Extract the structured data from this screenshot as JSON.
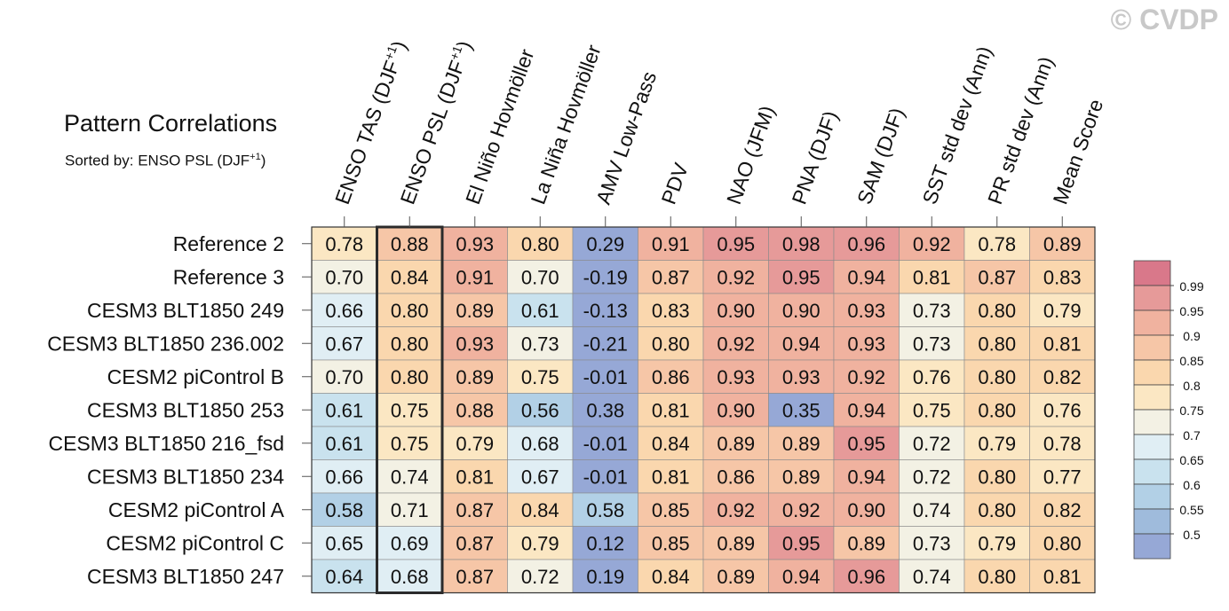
{
  "watermark": "© CVDP",
  "title": "Pattern Correlations",
  "subtitle_prefix": "Sorted by: ENSO PSL (DJF",
  "subtitle_sup": "+1",
  "subtitle_suffix": ")",
  "chart_data": {
    "type": "heatmap",
    "title": "Pattern Correlations",
    "sorted_by": "ENSO PSL (DJF+1)",
    "sup_label": "+1",
    "highlight_column": 1,
    "columns": [
      {
        "label": "ENSO TAS (DJF",
        "sup": true
      },
      {
        "label": "ENSO PSL (DJF",
        "sup": true
      },
      {
        "label": "El Niño Hovmöller",
        "sup": false
      },
      {
        "label": "La Niña Hovmöller",
        "sup": false
      },
      {
        "label": "AMV Low-Pass",
        "sup": false
      },
      {
        "label": "PDV",
        "sup": false
      },
      {
        "label": "NAO (JFM)",
        "sup": false
      },
      {
        "label": "PNA (DJF)",
        "sup": false
      },
      {
        "label": "SAM (DJF)",
        "sup": false
      },
      {
        "label": "SST std dev (Ann)",
        "sup": false
      },
      {
        "label": "PR std dev (Ann)",
        "sup": false
      },
      {
        "label": "Mean Score",
        "sup": false
      }
    ],
    "rows": [
      {
        "name": "Reference 2",
        "values": [
          "0.78",
          "0.88",
          "0.93",
          "0.80",
          "0.29",
          "0.91",
          "0.95",
          "0.98",
          "0.96",
          "0.92",
          "0.78",
          "0.89"
        ]
      },
      {
        "name": "Reference 3",
        "values": [
          "0.70",
          "0.84",
          "0.91",
          "0.70",
          "-0.19",
          "0.87",
          "0.92",
          "0.95",
          "0.94",
          "0.81",
          "0.87",
          "0.83"
        ]
      },
      {
        "name": "CESM3 BLT1850 249",
        "values": [
          "0.66",
          "0.80",
          "0.89",
          "0.61",
          "-0.13",
          "0.83",
          "0.90",
          "0.90",
          "0.93",
          "0.73",
          "0.80",
          "0.79"
        ]
      },
      {
        "name": "CESM3 BLT1850 236.002",
        "values": [
          "0.67",
          "0.80",
          "0.93",
          "0.73",
          "-0.21",
          "0.80",
          "0.92",
          "0.94",
          "0.93",
          "0.73",
          "0.80",
          "0.81"
        ]
      },
      {
        "name": "CESM2 piControl B",
        "values": [
          "0.70",
          "0.80",
          "0.89",
          "0.75",
          "-0.01",
          "0.86",
          "0.93",
          "0.93",
          "0.92",
          "0.76",
          "0.80",
          "0.82"
        ]
      },
      {
        "name": "CESM3 BLT1850 253",
        "values": [
          "0.61",
          "0.75",
          "0.88",
          "0.56",
          "0.38",
          "0.81",
          "0.90",
          "0.35",
          "0.94",
          "0.75",
          "0.80",
          "0.76"
        ]
      },
      {
        "name": "CESM3 BLT1850 216_fsd",
        "values": [
          "0.61",
          "0.75",
          "0.79",
          "0.68",
          "-0.01",
          "0.84",
          "0.89",
          "0.89",
          "0.95",
          "0.72",
          "0.79",
          "0.78"
        ]
      },
      {
        "name": "CESM3 BLT1850 234",
        "values": [
          "0.66",
          "0.74",
          "0.81",
          "0.67",
          "-0.01",
          "0.81",
          "0.86",
          "0.89",
          "0.94",
          "0.72",
          "0.80",
          "0.77"
        ]
      },
      {
        "name": "CESM2 piControl A",
        "values": [
          "0.58",
          "0.71",
          "0.87",
          "0.84",
          "0.58",
          "0.85",
          "0.92",
          "0.92",
          "0.90",
          "0.74",
          "0.80",
          "0.82"
        ]
      },
      {
        "name": "CESM2 piControl C",
        "values": [
          "0.65",
          "0.69",
          "0.87",
          "0.79",
          "0.12",
          "0.85",
          "0.89",
          "0.95",
          "0.89",
          "0.73",
          "0.79",
          "0.80"
        ]
      },
      {
        "name": "CESM3 BLT1850 247",
        "values": [
          "0.64",
          "0.68",
          "0.87",
          "0.72",
          "0.19",
          "0.84",
          "0.89",
          "0.94",
          "0.96",
          "0.74",
          "0.80",
          "0.81"
        ]
      }
    ],
    "legend": {
      "placement": "right",
      "labels": [
        "0.99",
        "0.95",
        "0.9",
        "0.85",
        "0.8",
        "0.75",
        "0.7",
        "0.65",
        "0.6",
        "0.55",
        "0.5"
      ],
      "colors": [
        "#d9788a",
        "#e69a99",
        "#f0b29f",
        "#f6c6a7",
        "#fad7ae",
        "#fbe7c3",
        "#f3f1e4",
        "#e0eef4",
        "#c9e2ee",
        "#b2d0e6",
        "#9fbbdc",
        "#96a8d6"
      ]
    },
    "bins": [
      {
        "min": 0.99,
        "color": "#d9788a"
      },
      {
        "min": 0.95,
        "color": "#e69a99"
      },
      {
        "min": 0.9,
        "color": "#f0b29f"
      },
      {
        "min": 0.85,
        "color": "#f6c6a7"
      },
      {
        "min": 0.8,
        "color": "#fad7ae"
      },
      {
        "min": 0.75,
        "color": "#fbe7c3"
      },
      {
        "min": 0.7,
        "color": "#f3f1e4"
      },
      {
        "min": 0.65,
        "color": "#e0eef4"
      },
      {
        "min": 0.6,
        "color": "#c9e2ee"
      },
      {
        "min": 0.55,
        "color": "#b2d0e6"
      },
      {
        "min": 0.5,
        "color": "#9fbbdc"
      },
      {
        "min": -99,
        "color": "#96a8d6"
      }
    ]
  }
}
